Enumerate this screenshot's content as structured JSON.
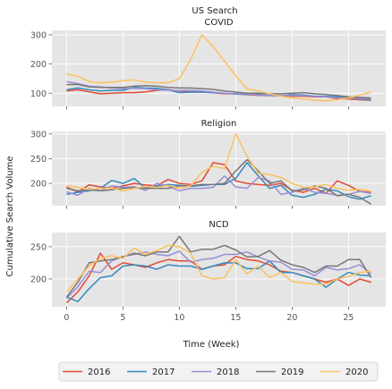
{
  "figure": {
    "suptitle": "US Search",
    "ylabel": "Cumulative Search Volume",
    "xlabel": "Time (Week)"
  },
  "colors": {
    "2016": "#e24a33",
    "2017": "#348abd",
    "2018": "#988ed5",
    "2019": "#777777",
    "2020": "#fbc15e",
    "panel_bg": "#e5e5e5",
    "grid": "#ffffff"
  },
  "legend": {
    "placement": "bottom-center",
    "entries": [
      "2016",
      "2017",
      "2018",
      "2019",
      "2020"
    ]
  },
  "chart_data": [
    {
      "type": "line",
      "title": "COVID",
      "xlim": [
        -1.3,
        28.3
      ],
      "ylim": [
        55,
        315
      ],
      "yticks": [
        100,
        200,
        300
      ],
      "xticks": [
        0,
        5,
        10,
        15,
        20,
        25
      ],
      "x": [
        0,
        1,
        2,
        3,
        4,
        5,
        6,
        7,
        8,
        9,
        10,
        11,
        12,
        13,
        14,
        15,
        16,
        17,
        18,
        19,
        20,
        21,
        22,
        23,
        24,
        25,
        26,
        27
      ],
      "series": [
        {
          "name": "2016",
          "values": [
            108,
            112,
            105,
            98,
            100,
            102,
            102,
            105,
            110,
            112,
            108,
            104,
            104,
            102,
            98,
            98,
            95,
            93,
            92,
            92,
            90,
            90,
            88,
            88,
            82,
            80,
            78,
            76
          ]
        },
        {
          "name": "2017",
          "values": [
            112,
            118,
            112,
            108,
            110,
            110,
            120,
            118,
            117,
            112,
            102,
            104,
            104,
            102,
            100,
            97,
            96,
            96,
            92,
            91,
            95,
            94,
            90,
            90,
            88,
            84,
            80,
            78
          ]
        },
        {
          "name": "2018",
          "values": [
            140,
            133,
            124,
            122,
            118,
            116,
            117,
            116,
            112,
            110,
            109,
            110,
            108,
            104,
            100,
            98,
            97,
            94,
            93,
            92,
            92,
            92,
            90,
            88,
            85,
            83,
            82,
            80
          ]
        },
        {
          "name": "2019",
          "values": [
            130,
            130,
            122,
            120,
            120,
            120,
            124,
            126,
            124,
            120,
            118,
            118,
            116,
            113,
            108,
            104,
            100,
            100,
            98,
            98,
            100,
            102,
            98,
            96,
            92,
            88,
            86,
            84
          ]
        },
        {
          "name": "2020",
          "values": [
            165,
            158,
            140,
            135,
            138,
            143,
            146,
            138,
            136,
            136,
            150,
            215,
            300,
            260,
            210,
            160,
            115,
            108,
            98,
            90,
            84,
            80,
            76,
            74,
            78,
            84,
            94,
            104
          ]
        }
      ]
    },
    {
      "type": "line",
      "title": "Religion",
      "xlim": [
        -1.3,
        28.3
      ],
      "ylim": [
        155,
        305
      ],
      "yticks": [
        200,
        250,
        300
      ],
      "xticks": [
        0,
        5,
        10,
        15,
        20,
        25
      ],
      "x": [
        0,
        1,
        2,
        3,
        4,
        5,
        6,
        7,
        8,
        9,
        10,
        11,
        12,
        13,
        14,
        15,
        16,
        17,
        18,
        19,
        20,
        21,
        22,
        23,
        24,
        25,
        26,
        27
      ],
      "series": [
        {
          "name": "2016",
          "values": [
            192,
            183,
            197,
            193,
            190,
            195,
            200,
            197,
            195,
            208,
            200,
            198,
            205,
            242,
            238,
            205,
            200,
            198,
            196,
            200,
            186,
            182,
            190,
            180,
            205,
            196,
            184,
            182
          ]
        },
        {
          "name": "2017",
          "values": [
            178,
            182,
            185,
            190,
            206,
            200,
            210,
            190,
            195,
            198,
            196,
            194,
            196,
            198,
            198,
            210,
            242,
            215,
            190,
            196,
            176,
            172,
            178,
            188,
            185,
            173,
            168,
            175
          ]
        },
        {
          "name": "2018",
          "values": [
            183,
            176,
            190,
            185,
            195,
            192,
            193,
            186,
            200,
            195,
            185,
            190,
            190,
            192,
            215,
            193,
            190,
            212,
            205,
            178,
            182,
            190,
            182,
            180,
            176,
            178,
            184,
            180
          ]
        },
        {
          "name": "2019",
          "values": [
            190,
            185,
            187,
            185,
            187,
            190,
            192,
            190,
            190,
            190,
            195,
            195,
            198,
            198,
            200,
            225,
            248,
            225,
            200,
            205,
            185,
            187,
            195,
            190,
            175,
            178,
            172,
            158
          ]
        },
        {
          "name": "2020",
          "values": [
            195,
            192,
            188,
            190,
            190,
            185,
            190,
            194,
            192,
            196,
            190,
            195,
            222,
            235,
            230,
            300,
            255,
            220,
            218,
            212,
            200,
            192,
            193,
            198,
            190,
            186,
            188,
            184
          ]
        }
      ]
    },
    {
      "type": "line",
      "title": "NCD",
      "xlim": [
        -1.3,
        28.3
      ],
      "ylim": [
        157,
        272
      ],
      "yticks": [
        200,
        250
      ],
      "xticks": [
        0,
        5,
        10,
        15,
        20,
        25
      ],
      "xticklabels": [
        "0",
        "5",
        "10",
        "15",
        "20",
        "25"
      ],
      "x": [
        0,
        1,
        2,
        3,
        4,
        5,
        6,
        7,
        8,
        9,
        10,
        11,
        12,
        13,
        14,
        15,
        16,
        17,
        18,
        19,
        20,
        21,
        22,
        23,
        24,
        25,
        26,
        27
      ],
      "series": [
        {
          "name": "2016",
          "values": [
            163,
            180,
            205,
            240,
            215,
            225,
            222,
            218,
            225,
            230,
            228,
            228,
            215,
            220,
            222,
            235,
            230,
            228,
            222,
            212,
            210,
            205,
            200,
            195,
            200,
            190,
            200,
            195
          ]
        },
        {
          "name": "2017",
          "values": [
            172,
            165,
            185,
            202,
            205,
            220,
            222,
            220,
            215,
            222,
            220,
            220,
            215,
            220,
            225,
            225,
            216,
            216,
            228,
            210,
            210,
            205,
            200,
            187,
            200,
            210,
            206,
            205
          ]
        },
        {
          "name": "2018",
          "values": [
            170,
            188,
            212,
            210,
            228,
            235,
            238,
            242,
            238,
            236,
            243,
            226,
            230,
            232,
            238,
            238,
            242,
            234,
            228,
            226,
            215,
            214,
            205,
            218,
            214,
            216,
            222,
            208
          ]
        },
        {
          "name": "2019",
          "values": [
            172,
            195,
            225,
            228,
            230,
            234,
            240,
            236,
            242,
            242,
            266,
            242,
            246,
            246,
            252,
            245,
            234,
            235,
            244,
            229,
            222,
            218,
            210,
            220,
            220,
            230,
            230,
            202
          ]
        },
        {
          "name": "2020",
          "values": [
            180,
            200,
            220,
            232,
            236,
            232,
            248,
            238,
            244,
            252,
            250,
            240,
            205,
            200,
            202,
            230,
            208,
            220,
            202,
            210,
            196,
            194,
            192,
            192,
            200,
            204,
            210,
            212
          ]
        }
      ]
    }
  ]
}
